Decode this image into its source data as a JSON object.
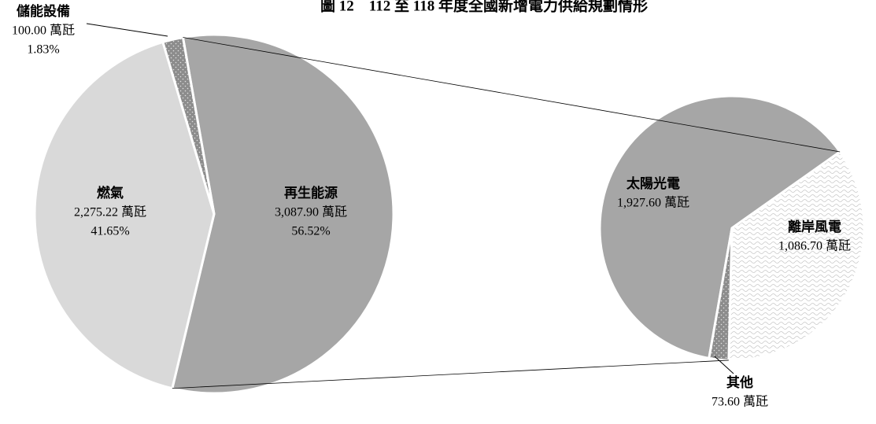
{
  "chart_data": [
    {
      "type": "pie",
      "title": "圖 12　112 至 118 年度全國新增電力供給規劃情形",
      "categories": [
        "再生能源",
        "燃氣",
        "儲能設備"
      ],
      "values": [
        3087.9,
        2275.22,
        100.0
      ],
      "value_labels": [
        "3,087.90 萬瓩",
        "2,275.22 萬瓩",
        "100.00 萬瓩"
      ],
      "percent_labels": [
        "56.52%",
        "41.65%",
        "1.83%"
      ],
      "colors": [
        "#a6a6a6",
        "#d9d9d9",
        "#8c8c8c"
      ],
      "patterns": [
        null,
        null,
        "dots"
      ]
    },
    {
      "type": "pie",
      "categories": [
        "太陽光電",
        "離岸風電",
        "其他"
      ],
      "values": [
        1927.6,
        1086.7,
        73.6
      ],
      "value_labels": [
        "1,927.60 萬瓩",
        "1,086.70 萬瓩",
        "73.60 萬瓩"
      ],
      "colors": [
        "#a6a6a6",
        "#ffffff",
        "#8c8c8c"
      ],
      "patterns": [
        null,
        "waves",
        "dots"
      ]
    }
  ]
}
